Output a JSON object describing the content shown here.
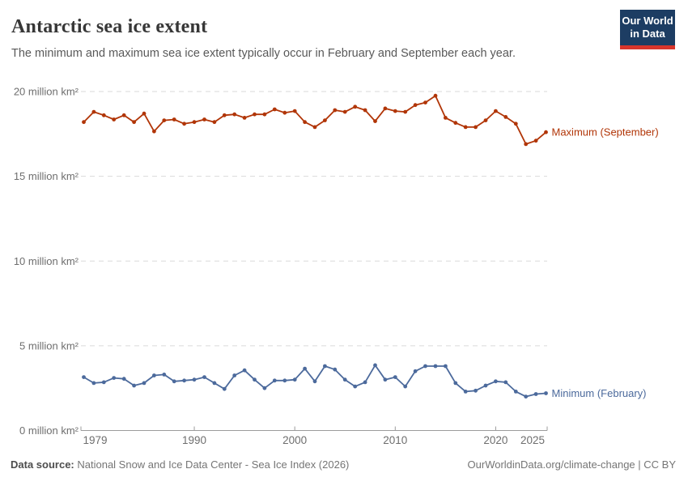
{
  "header": {
    "title": "Antarctic sea ice extent",
    "subtitle": "The minimum and maximum sea ice extent typically occur in February and September each year.",
    "logo": {
      "line1": "Our World",
      "line2": "in Data",
      "bg_color": "#1d3d63",
      "bar_color": "#d8352c"
    }
  },
  "chart_data": {
    "type": "line",
    "title": "Antarctic sea ice extent",
    "xlabel": "",
    "ylabel": "million km²",
    "ylim": [
      0,
      20
    ],
    "grid": "horizontal-dashed",
    "legend_position": "right-end-labels",
    "x": [
      1979,
      1980,
      1981,
      1982,
      1983,
      1984,
      1985,
      1986,
      1987,
      1988,
      1989,
      1990,
      1991,
      1992,
      1993,
      1994,
      1995,
      1996,
      1997,
      1998,
      1999,
      2000,
      2001,
      2002,
      2003,
      2004,
      2005,
      2006,
      2007,
      2008,
      2009,
      2010,
      2011,
      2012,
      2013,
      2014,
      2015,
      2016,
      2017,
      2018,
      2019,
      2020,
      2021,
      2022,
      2023,
      2024,
      2025
    ],
    "x_ticks": [
      1979,
      1990,
      2000,
      2010,
      2020,
      2025
    ],
    "x_tick_labels": [
      "1979",
      "1990",
      "2000",
      "2010",
      "2020",
      "2025"
    ],
    "y_ticks": [
      0,
      5,
      10,
      15,
      20
    ],
    "y_tick_labels": [
      "0 million km²",
      "5 million km²",
      "10 million km²",
      "15 million km²",
      "20 million km²"
    ],
    "series": [
      {
        "name": "Maximum (September)",
        "color": "#B13507",
        "values": [
          18.2,
          18.8,
          18.6,
          18.35,
          18.6,
          18.2,
          18.7,
          17.65,
          18.3,
          18.35,
          18.1,
          18.2,
          18.35,
          18.2,
          18.6,
          18.65,
          18.45,
          18.65,
          18.65,
          18.95,
          18.75,
          18.85,
          18.2,
          17.9,
          18.3,
          18.9,
          18.8,
          19.1,
          18.9,
          18.25,
          19.0,
          18.85,
          18.8,
          19.2,
          19.35,
          19.75,
          18.45,
          18.15,
          17.9,
          17.9,
          18.3,
          18.85,
          18.5,
          18.1,
          16.9,
          17.1,
          17.6
        ]
      },
      {
        "name": "Minimum (February)",
        "color": "#4C6A9C",
        "values": [
          3.15,
          2.8,
          2.85,
          3.1,
          3.05,
          2.65,
          2.8,
          3.25,
          3.3,
          2.9,
          2.95,
          3.0,
          3.15,
          2.8,
          2.45,
          3.25,
          3.55,
          3.0,
          2.5,
          2.95,
          2.95,
          3.0,
          3.65,
          2.9,
          3.8,
          3.6,
          3.0,
          2.6,
          2.85,
          3.85,
          3.0,
          3.15,
          2.6,
          3.5,
          3.8,
          3.8,
          3.8,
          2.8,
          2.3,
          2.35,
          2.65,
          2.9,
          2.85,
          2.3,
          2.0,
          2.15,
          2.2
        ]
      }
    ]
  },
  "footer": {
    "source_label": "Data source:",
    "source_text": " National Snow and Ice Data Center - Sea Ice Index (2026)",
    "link_text": "OurWorldinData.org/climate-change | CC BY"
  },
  "colors": {
    "maximum_series": "#B13507",
    "minimum_series": "#4C6A9C",
    "gridline": "#dadada",
    "axis": "#9c9c9c",
    "tick_label": "#6e6e6e"
  }
}
